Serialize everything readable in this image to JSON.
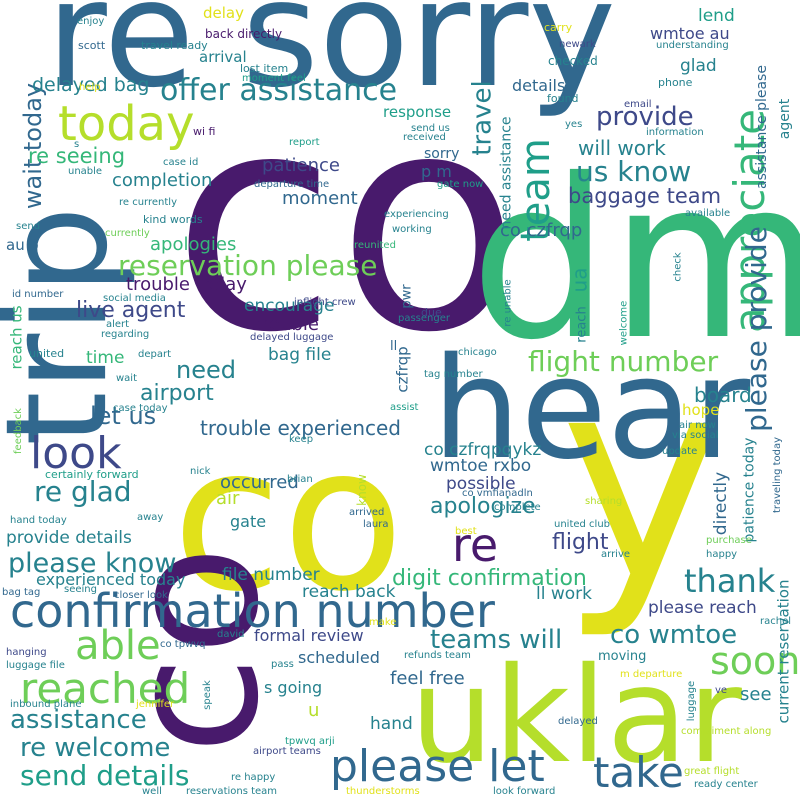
{
  "palette": {
    "dark_purple": "#481a6c",
    "indigo": "#3e4989",
    "steel_blue": "#31688e",
    "teal": "#26828e",
    "green_teal": "#1f9e89",
    "green": "#35b779",
    "lime": "#6ece58",
    "yellow_green": "#b5de2b",
    "yellow": "#e1e11a"
  },
  "words": [
    {
      "text": "co",
      "color": "#481a6c"
    },
    {
      "text": "re sorry",
      "color": "#31688e"
    },
    {
      "text": "dm",
      "color": "#35b779"
    },
    {
      "text": "co",
      "color": "#e1e11a"
    },
    {
      "text": "y",
      "color": "#e1e11a"
    },
    {
      "text": "hear",
      "color": "#31688e"
    },
    {
      "text": "uklar",
      "color": "#b5de2b"
    },
    {
      "text": "trip",
      "color": "#31688e"
    },
    {
      "text": "co",
      "color": "#481a6c"
    },
    {
      "text": "confirmation number",
      "color": "#31688e"
    },
    {
      "text": "today",
      "color": "#b5de2b"
    },
    {
      "text": "team",
      "color": "#1f9e89"
    },
    {
      "text": "appreciate",
      "color": "#35b779"
    },
    {
      "text": "look",
      "color": "#3e4989"
    },
    {
      "text": "re",
      "color": "#481a6c"
    },
    {
      "text": "please let",
      "color": "#31688e"
    },
    {
      "text": "take",
      "color": "#31688e"
    },
    {
      "text": "reached",
      "color": "#6ece58"
    },
    {
      "text": "soon",
      "color": "#6ece58"
    },
    {
      "text": "able",
      "color": "#6ece58"
    },
    {
      "text": "offer assistance",
      "color": "#26828e"
    },
    {
      "text": "reservation please",
      "color": "#6ece58"
    },
    {
      "text": "flight number",
      "color": "#6ece58"
    },
    {
      "text": "please provide",
      "color": "#31688e"
    },
    {
      "text": "assistance",
      "color": "#26828e"
    },
    {
      "text": "send details",
      "color": "#1f9e89"
    },
    {
      "text": "re welcome",
      "color": "#26828e"
    },
    {
      "text": "please know",
      "color": "#26828e"
    },
    {
      "text": "re glad",
      "color": "#26828e"
    },
    {
      "text": "thank",
      "color": "#26828e"
    },
    {
      "text": "co wmtoe",
      "color": "#26828e"
    },
    {
      "text": "teams will",
      "color": "#26828e"
    },
    {
      "text": "us know",
      "color": "#26828e"
    },
    {
      "text": "provide",
      "color": "#3e4989"
    },
    {
      "text": "travel",
      "color": "#26828e"
    },
    {
      "text": "wait today",
      "color": "#31688e"
    },
    {
      "text": "let us",
      "color": "#31688e"
    },
    {
      "text": "need",
      "color": "#26828e"
    },
    {
      "text": "airport",
      "color": "#26828e"
    },
    {
      "text": "board",
      "color": "#26828e"
    },
    {
      "text": "apologize",
      "color": "#26828e"
    },
    {
      "text": "flight",
      "color": "#3e4989"
    },
    {
      "text": "digit confirmation",
      "color": "#35b779"
    },
    {
      "text": "trouble experienced",
      "color": "#31688e"
    },
    {
      "text": "re seeing",
      "color": "#35b779"
    },
    {
      "text": "delayed bag",
      "color": "#26828e"
    },
    {
      "text": "baggage team",
      "color": "#3e4989"
    },
    {
      "text": "will work",
      "color": "#26828e"
    },
    {
      "text": "live agent",
      "color": "#3e4989"
    },
    {
      "text": "apologies",
      "color": "#35b779"
    },
    {
      "text": "completion",
      "color": "#26828e"
    },
    {
      "text": "patience",
      "color": "#3e4989"
    },
    {
      "text": "moment",
      "color": "#31688e"
    },
    {
      "text": "encourage",
      "color": "#26828e"
    },
    {
      "text": "trouble today",
      "color": "#481a6c"
    },
    {
      "text": "trouble",
      "color": "#481a6c"
    },
    {
      "text": "bag file",
      "color": "#26828e"
    },
    {
      "text": "time",
      "color": "#35b779"
    },
    {
      "text": "co czfrqp",
      "color": "#31688e"
    },
    {
      "text": "co czfrqpqykz",
      "color": "#26828e"
    },
    {
      "text": "wmtoe rxbo",
      "color": "#31688e"
    },
    {
      "text": "possible",
      "color": "#3e4989"
    },
    {
      "text": "occurred",
      "color": "#31688e"
    },
    {
      "text": "air",
      "color": "#b5de2b"
    },
    {
      "text": "gate",
      "color": "#26828e"
    },
    {
      "text": "provide details",
      "color": "#26828e"
    },
    {
      "text": "file number",
      "color": "#26828e"
    },
    {
      "text": "reach back",
      "color": "#26828e"
    },
    {
      "text": "ll work",
      "color": "#26828e"
    },
    {
      "text": "please reach",
      "color": "#3e4989"
    },
    {
      "text": "experienced today",
      "color": "#26828e"
    },
    {
      "text": "formal review",
      "color": "#3e4989"
    },
    {
      "text": "scheduled",
      "color": "#31688e"
    },
    {
      "text": "s going",
      "color": "#26828e"
    },
    {
      "text": "feel free",
      "color": "#31688e"
    },
    {
      "text": "hand",
      "color": "#26828e"
    },
    {
      "text": "see",
      "color": "#26828e"
    },
    {
      "text": "u",
      "color": "#b5de2b"
    },
    {
      "text": "moving",
      "color": "#26828e"
    },
    {
      "text": "ua",
      "color": "#1f9e89"
    },
    {
      "text": "glad",
      "color": "#26828e"
    },
    {
      "text": "lend",
      "color": "#1f9e89"
    },
    {
      "text": "wmtoe au",
      "color": "#3e4989"
    },
    {
      "text": "details",
      "color": "#31688e"
    },
    {
      "text": "arrival",
      "color": "#26828e"
    },
    {
      "text": "response",
      "color": "#1f9e89"
    },
    {
      "text": "sorry",
      "color": "#31688e"
    },
    {
      "text": "p m",
      "color": "#31688e"
    },
    {
      "text": "delay",
      "color": "#e1e11a"
    },
    {
      "text": "hope",
      "color": "#e1e11a"
    },
    {
      "text": "directly",
      "color": "#31688e"
    },
    {
      "text": "patience today",
      "color": "#26828e"
    },
    {
      "text": "current reservation",
      "color": "#26828e"
    },
    {
      "text": "assistance please",
      "color": "#31688e"
    },
    {
      "text": "agent",
      "color": "#26828e"
    },
    {
      "text": "need assistance",
      "color": "#26828e"
    },
    {
      "text": "czfrqp",
      "color": "#31688e"
    },
    {
      "text": "pwr",
      "color": "#31688e"
    },
    {
      "text": "reach us",
      "color": "#35b779"
    },
    {
      "text": "au o",
      "color": "#31688e"
    },
    {
      "text": "reach",
      "color": "#26828e"
    },
    {
      "text": "ll",
      "color": "#31688e"
    },
    {
      "text": "re unable",
      "color": "#26828e"
    },
    {
      "text": "welcome",
      "color": "#1f9e89"
    },
    {
      "text": "check",
      "color": "#26828e"
    },
    {
      "text": "traveling today",
      "color": "#31688e"
    },
    {
      "text": "know",
      "color": "#b5de2b"
    },
    {
      "text": "scott",
      "color": "#31688e"
    },
    {
      "text": "travel ready",
      "color": "#26828e"
    },
    {
      "text": "back directly",
      "color": "#481a6c"
    },
    {
      "text": "lost item",
      "color": "#26828e"
    },
    {
      "text": "moment feel",
      "color": "#1f9e89"
    },
    {
      "text": "carry",
      "color": "#e1e11a"
    },
    {
      "text": "newark",
      "color": "#3e4989"
    },
    {
      "text": "checked",
      "color": "#26828e"
    },
    {
      "text": "understanding",
      "color": "#26828e"
    },
    {
      "text": "phone",
      "color": "#26828e"
    },
    {
      "text": "found",
      "color": "#26828e"
    },
    {
      "text": "email",
      "color": "#3e4989"
    },
    {
      "text": "yes",
      "color": "#26828e"
    },
    {
      "text": "information",
      "color": "#26828e"
    },
    {
      "text": "enjoy",
      "color": "#26828e"
    },
    {
      "text": "help",
      "color": "#e1e11a"
    },
    {
      "text": "wi fi",
      "color": "#481a6c"
    },
    {
      "text": "report",
      "color": "#1f9e89"
    },
    {
      "text": "send us",
      "color": "#26828e"
    },
    {
      "text": "received",
      "color": "#26828e"
    },
    {
      "text": "s",
      "color": "#26828e"
    },
    {
      "text": "gate now",
      "color": "#1f9e89"
    },
    {
      "text": "case id",
      "color": "#26828e"
    },
    {
      "text": "unable",
      "color": "#26828e"
    },
    {
      "text": "departure time",
      "color": "#31688e"
    },
    {
      "text": "re currently",
      "color": "#26828e"
    },
    {
      "text": "kind words",
      "color": "#26828e"
    },
    {
      "text": "experiencing",
      "color": "#26828e"
    },
    {
      "text": "working",
      "color": "#26828e"
    },
    {
      "text": "available",
      "color": "#26828e"
    },
    {
      "text": "send",
      "color": "#26828e"
    },
    {
      "text": "currently",
      "color": "#6ece58"
    },
    {
      "text": "reunited",
      "color": "#35b779"
    },
    {
      "text": "id number",
      "color": "#31688e"
    },
    {
      "text": "social media",
      "color": "#26828e"
    },
    {
      "text": "inflight crew",
      "color": "#3e4989"
    },
    {
      "text": "due",
      "color": "#3e4989"
    },
    {
      "text": "passenger",
      "color": "#26828e"
    },
    {
      "text": "alert",
      "color": "#26828e"
    },
    {
      "text": "regarding",
      "color": "#26828e"
    },
    {
      "text": "delayed luggage",
      "color": "#3e4989"
    },
    {
      "text": "united",
      "color": "#26828e"
    },
    {
      "text": "depart",
      "color": "#26828e"
    },
    {
      "text": "chicago",
      "color": "#26828e"
    },
    {
      "text": "wait",
      "color": "#26828e"
    },
    {
      "text": "tag number",
      "color": "#26828e"
    },
    {
      "text": "assist",
      "color": "#1f9e89"
    },
    {
      "text": "feedback",
      "color": "#6ece58"
    },
    {
      "text": "case today",
      "color": "#26828e"
    },
    {
      "text": "keep",
      "color": "#26828e"
    },
    {
      "text": "air now",
      "color": "#26828e"
    },
    {
      "text": "via social",
      "color": "#26828e"
    },
    {
      "text": "update",
      "color": "#26828e"
    },
    {
      "text": "nick",
      "color": "#26828e"
    },
    {
      "text": "certainly forward",
      "color": "#1f9e89"
    },
    {
      "text": "brian",
      "color": "#26828e"
    },
    {
      "text": "co vmfianadln",
      "color": "#31688e"
    },
    {
      "text": "complete",
      "color": "#26828e"
    },
    {
      "text": "arrived",
      "color": "#31688e"
    },
    {
      "text": "laura",
      "color": "#31688e"
    },
    {
      "text": "sharing",
      "color": "#b5de2b"
    },
    {
      "text": "hand today",
      "color": "#26828e"
    },
    {
      "text": "away",
      "color": "#26828e"
    },
    {
      "text": "united club",
      "color": "#26828e"
    },
    {
      "text": "best",
      "color": "#e1e11a"
    },
    {
      "text": "purchase",
      "color": "#6ece58"
    },
    {
      "text": "arrive",
      "color": "#26828e"
    },
    {
      "text": "happy",
      "color": "#26828e"
    },
    {
      "text": "bag tag",
      "color": "#31688e"
    },
    {
      "text": "seeing",
      "color": "#26828e"
    },
    {
      "text": "closer look",
      "color": "#31688e"
    },
    {
      "text": "david",
      "color": "#26828e"
    },
    {
      "text": "make",
      "color": "#e1e11a"
    },
    {
      "text": "rachel",
      "color": "#26828e"
    },
    {
      "text": "co tpwvq",
      "color": "#31688e"
    },
    {
      "text": "hanging",
      "color": "#3e4989"
    },
    {
      "text": "luggage file",
      "color": "#26828e"
    },
    {
      "text": "pass",
      "color": "#26828e"
    },
    {
      "text": "refunds team",
      "color": "#26828e"
    },
    {
      "text": "m departure",
      "color": "#e1e11a"
    },
    {
      "text": "luggage",
      "color": "#26828e"
    },
    {
      "text": "ve",
      "color": "#3e4989"
    },
    {
      "text": "inbound plane",
      "color": "#26828e"
    },
    {
      "text": "jennifer",
      "color": "#e1e11a"
    },
    {
      "text": "speak",
      "color": "#26828e"
    },
    {
      "text": "delayed",
      "color": "#31688e"
    },
    {
      "text": "airport teams",
      "color": "#3e4989"
    },
    {
      "text": "tpwvq arji",
      "color": "#1f9e89"
    },
    {
      "text": "compliment along",
      "color": "#b5de2b"
    },
    {
      "text": "great flight",
      "color": "#b5de2b"
    },
    {
      "text": "re happy",
      "color": "#26828e"
    },
    {
      "text": "ready center",
      "color": "#26828e"
    },
    {
      "text": "well",
      "color": "#26828e"
    },
    {
      "text": "reservations team",
      "color": "#26828e"
    },
    {
      "text": "thunderstorms",
      "color": "#e1e11a"
    },
    {
      "text": "look forward",
      "color": "#26828e"
    }
  ]
}
